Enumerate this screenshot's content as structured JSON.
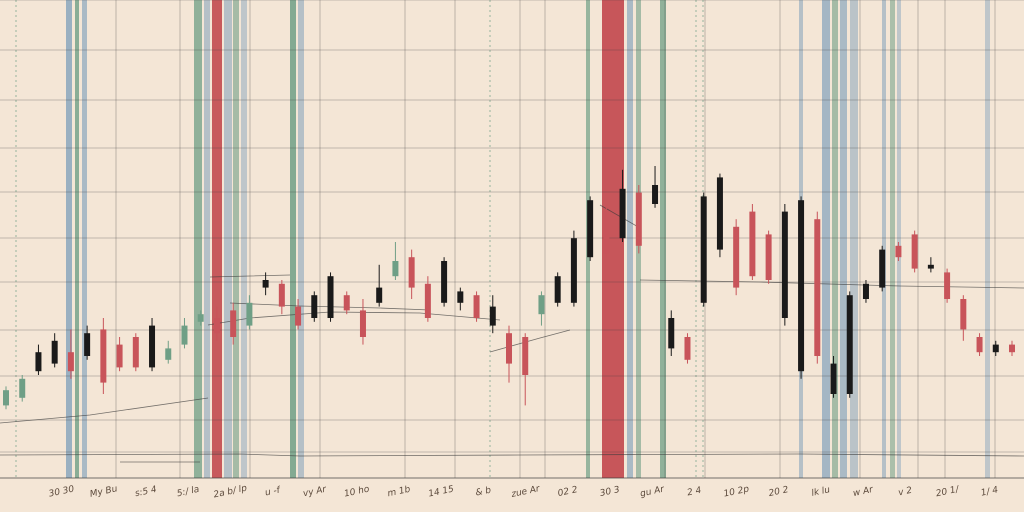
{
  "chart_data": {
    "type": "candlestick",
    "title": "",
    "xlabel": "",
    "ylabel": "",
    "grid": true,
    "legend": "none",
    "ylim": [
      0,
      100
    ],
    "colors": {
      "background": "#f4e6d6",
      "grid": "#3c3c3c",
      "up": "#1a1a1a",
      "down": "#c8545a",
      "accent_green": "#6f9f86",
      "accent_blue": "#8aa6bd",
      "accent_red": "#c24a4f"
    },
    "candles": [
      {
        "open": 17,
        "close": 21,
        "high": 22,
        "low": 16,
        "color": "green"
      },
      {
        "open": 19,
        "close": 24,
        "high": 25,
        "low": 18,
        "color": "green"
      },
      {
        "open": 26,
        "close": 31,
        "high": 33,
        "low": 25,
        "color": "black"
      },
      {
        "open": 28,
        "close": 34,
        "high": 36,
        "low": 27,
        "color": "black"
      },
      {
        "open": 31,
        "close": 26,
        "high": 37,
        "low": 24,
        "color": "red"
      },
      {
        "open": 30,
        "close": 36,
        "high": 38,
        "low": 29,
        "color": "black"
      },
      {
        "open": 37,
        "close": 23,
        "high": 40,
        "low": 20,
        "color": "red"
      },
      {
        "open": 33,
        "close": 27,
        "high": 35,
        "low": 26,
        "color": "red"
      },
      {
        "open": 35,
        "close": 27,
        "high": 36,
        "low": 26,
        "color": "red"
      },
      {
        "open": 27,
        "close": 38,
        "high": 40,
        "low": 26,
        "color": "black"
      },
      {
        "open": 29,
        "close": 32,
        "high": 34,
        "low": 28,
        "color": "green"
      },
      {
        "open": 33,
        "close": 38,
        "high": 40,
        "low": 32,
        "color": "green"
      },
      {
        "open": 39,
        "close": 41,
        "high": 42,
        "low": 38,
        "color": "green"
      },
      {
        "open": 40,
        "close": 36,
        "high": 43,
        "low": 34,
        "color": "red"
      },
      {
        "open": 42,
        "close": 35,
        "high": 44,
        "low": 33,
        "color": "red"
      },
      {
        "open": 38,
        "close": 44,
        "high": 46,
        "low": 37,
        "color": "green"
      },
      {
        "open": 50,
        "close": 48,
        "high": 52,
        "low": 46,
        "color": "black"
      },
      {
        "open": 49,
        "close": 43,
        "high": 50,
        "low": 41,
        "color": "red"
      },
      {
        "open": 43,
        "close": 38,
        "high": 45,
        "low": 37,
        "color": "red"
      },
      {
        "open": 40,
        "close": 46,
        "high": 47,
        "low": 39,
        "color": "black"
      },
      {
        "open": 40,
        "close": 51,
        "high": 52,
        "low": 39,
        "color": "black"
      },
      {
        "open": 46,
        "close": 42,
        "high": 47,
        "low": 41,
        "color": "red"
      },
      {
        "open": 42,
        "close": 35,
        "high": 45,
        "low": 33,
        "color": "red"
      },
      {
        "open": 44,
        "close": 48,
        "high": 54,
        "low": 43,
        "color": "black"
      },
      {
        "open": 51,
        "close": 55,
        "high": 60,
        "low": 50,
        "color": "green"
      },
      {
        "open": 56,
        "close": 48,
        "high": 58,
        "low": 45,
        "color": "red"
      },
      {
        "open": 49,
        "close": 40,
        "high": 51,
        "low": 39,
        "color": "red"
      },
      {
        "open": 44,
        "close": 55,
        "high": 56,
        "low": 43,
        "color": "black"
      },
      {
        "open": 47,
        "close": 44,
        "high": 48,
        "low": 42,
        "color": "black"
      },
      {
        "open": 46,
        "close": 40,
        "high": 47,
        "low": 39,
        "color": "red"
      },
      {
        "open": 38,
        "close": 43,
        "high": 46,
        "low": 36,
        "color": "black"
      },
      {
        "open": 36,
        "close": 28,
        "high": 38,
        "low": 23,
        "color": "red"
      },
      {
        "open": 35,
        "close": 25,
        "high": 36,
        "low": 17,
        "color": "red"
      },
      {
        "open": 41,
        "close": 46,
        "high": 47,
        "low": 38,
        "color": "green"
      },
      {
        "open": 44,
        "close": 51,
        "high": 52,
        "low": 43,
        "color": "black"
      },
      {
        "open": 44,
        "close": 61,
        "high": 63,
        "low": 43,
        "color": "black"
      },
      {
        "open": 56,
        "close": 71,
        "high": 72,
        "low": 55,
        "color": "black"
      },
      {
        "open": 68,
        "close": 57,
        "high": 70,
        "low": 56,
        "color": "red"
      },
      {
        "open": 61,
        "close": 74,
        "high": 79,
        "low": 60,
        "color": "black"
      },
      {
        "open": 73,
        "close": 59,
        "high": 75,
        "low": 57,
        "color": "red"
      },
      {
        "open": 70,
        "close": 75,
        "high": 80,
        "low": 69,
        "color": "black"
      },
      {
        "open": 40,
        "close": 32,
        "high": 42,
        "low": 30,
        "color": "black"
      },
      {
        "open": 35,
        "close": 29,
        "high": 36,
        "low": 28,
        "color": "red"
      },
      {
        "open": 44,
        "close": 72,
        "high": 73,
        "low": 43,
        "color": "black"
      },
      {
        "open": 58,
        "close": 77,
        "high": 78,
        "low": 56,
        "color": "black"
      },
      {
        "open": 64,
        "close": 48,
        "high": 66,
        "low": 46,
        "color": "red"
      },
      {
        "open": 68,
        "close": 51,
        "high": 70,
        "low": 50,
        "color": "red"
      },
      {
        "open": 62,
        "close": 50,
        "high": 63,
        "low": 49,
        "color": "red"
      },
      {
        "open": 68,
        "close": 40,
        "high": 70,
        "low": 38,
        "color": "black"
      },
      {
        "open": 71,
        "close": 26,
        "high": 72,
        "low": 24,
        "color": "black"
      },
      {
        "open": 66,
        "close": 30,
        "high": 68,
        "low": 28,
        "color": "red"
      },
      {
        "open": 28,
        "close": 20,
        "high": 30,
        "low": 19,
        "color": "black"
      },
      {
        "open": 46,
        "close": 20,
        "high": 47,
        "low": 19,
        "color": "black"
      },
      {
        "open": 49,
        "close": 45,
        "high": 50,
        "low": 44,
        "color": "black"
      },
      {
        "open": 58,
        "close": 48,
        "high": 59,
        "low": 47,
        "color": "black"
      },
      {
        "open": 59,
        "close": 56,
        "high": 60,
        "low": 55,
        "color": "red"
      },
      {
        "open": 62,
        "close": 53,
        "high": 63,
        "low": 52,
        "color": "red"
      },
      {
        "open": 54,
        "close": 53,
        "high": 56,
        "low": 52,
        "color": "black"
      },
      {
        "open": 52,
        "close": 45,
        "high": 53,
        "low": 44,
        "color": "red"
      },
      {
        "open": 45,
        "close": 37,
        "high": 46,
        "low": 34,
        "color": "red"
      },
      {
        "open": 35,
        "close": 31,
        "high": 36,
        "low": 30,
        "color": "red"
      },
      {
        "open": 31,
        "close": 33,
        "high": 34,
        "low": 30,
        "color": "black"
      },
      {
        "open": 33,
        "close": 31,
        "high": 34,
        "low": 30,
        "color": "red"
      }
    ],
    "x_tick_labels": [
      "30 30",
      "My Bu",
      "s:5 4",
      "5:/ la",
      "2a b/ lp",
      "u -f",
      "vy Ar",
      "10 ho",
      "m 1b",
      "14 15",
      "& b",
      "zue Ar",
      "02 2",
      "30 3",
      "gu Ar",
      "2 4",
      "10 2p",
      "20 2",
      "lk lu",
      "w Ar",
      "v 2",
      "20 1/",
      "1/ 4"
    ]
  }
}
